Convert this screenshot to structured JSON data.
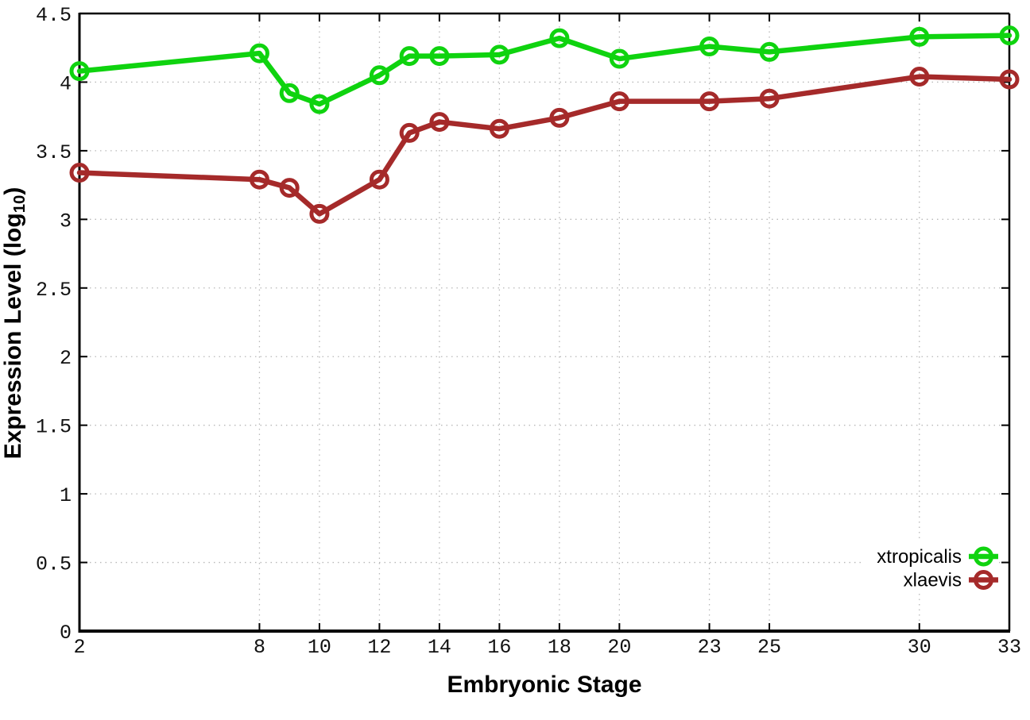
{
  "chart_data": {
    "type": "line",
    "style": "linespoints-open-circles",
    "xlabel": "Embryonic Stage",
    "ylabel_prefix": "Expression Level (log",
    "ylabel_sub": "10",
    "ylabel_suffix": ")",
    "xlim": [
      2,
      33
    ],
    "ylim": [
      0,
      4.5
    ],
    "grid": true,
    "legend_position": "bottom-right",
    "x": [
      2,
      8,
      9,
      10,
      12,
      13,
      14,
      16,
      18,
      20,
      23,
      25,
      30,
      33
    ],
    "xtick_values": [
      2,
      8,
      10,
      12,
      14,
      16,
      18,
      20,
      23,
      25,
      30,
      33
    ],
    "xtick_labels": [
      "2",
      "8",
      "10",
      "12",
      "14",
      "16",
      "18",
      "20",
      "23",
      "25",
      "30",
      "33"
    ],
    "ytick_values": [
      0,
      0.5,
      1,
      1.5,
      2,
      2.5,
      3,
      3.5,
      4,
      4.5
    ],
    "ytick_labels": [
      "0",
      "0.5",
      "1",
      "1.5",
      "2",
      "2.5",
      "3",
      "3.5",
      "4",
      "4.5"
    ],
    "series": [
      {
        "name": "xtropicalis",
        "color": "#0fd30f",
        "values": [
          4.08,
          4.21,
          3.92,
          3.84,
          4.05,
          4.19,
          4.19,
          4.2,
          4.32,
          4.17,
          4.26,
          4.22,
          4.33,
          4.34
        ]
      },
      {
        "name": "xlaevis",
        "color": "#a52a2a",
        "values": [
          3.34,
          3.29,
          3.23,
          3.04,
          3.29,
          3.63,
          3.71,
          3.66,
          3.74,
          3.86,
          3.86,
          3.88,
          4.04,
          4.02
        ]
      }
    ]
  }
}
